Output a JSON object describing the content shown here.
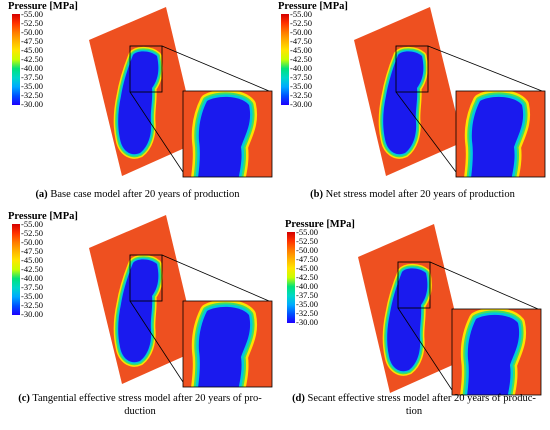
{
  "legend": {
    "title": "Pressure [MPa]",
    "ticks": [
      "-55.00",
      "-52.50",
      "-50.00",
      "-47.50",
      "-45.00",
      "-42.50",
      "-40.00",
      "-37.50",
      "-35.00",
      "-32.50",
      "-30.00"
    ],
    "colors": [
      "#d40000",
      "#ff3200",
      "#ff7a00",
      "#ffb400",
      "#ffe600",
      "#c8ff00",
      "#00e27a",
      "#00d8c8",
      "#00aaff",
      "#0050ff",
      "#1e00ff"
    ]
  },
  "colors": {
    "field": "#ee5020",
    "depleted_core": "#1a1aee",
    "halo_outer": "#ffe000",
    "halo_mid": "#40e060",
    "halo_inner": "#00c8e0"
  },
  "panels": [
    {
      "letter": "(a)",
      "caption": "Base case model after 20 years of production"
    },
    {
      "letter": "(b)",
      "caption": "Net stress model after 20 years of production"
    },
    {
      "letter": "(c)",
      "caption": "Tangential effective stress model after 20 years of pro-",
      "caption2": "duction"
    },
    {
      "letter": "(d)",
      "caption": "Secant effective stress model after 20 years of produc-",
      "caption2": "tion"
    }
  ]
}
